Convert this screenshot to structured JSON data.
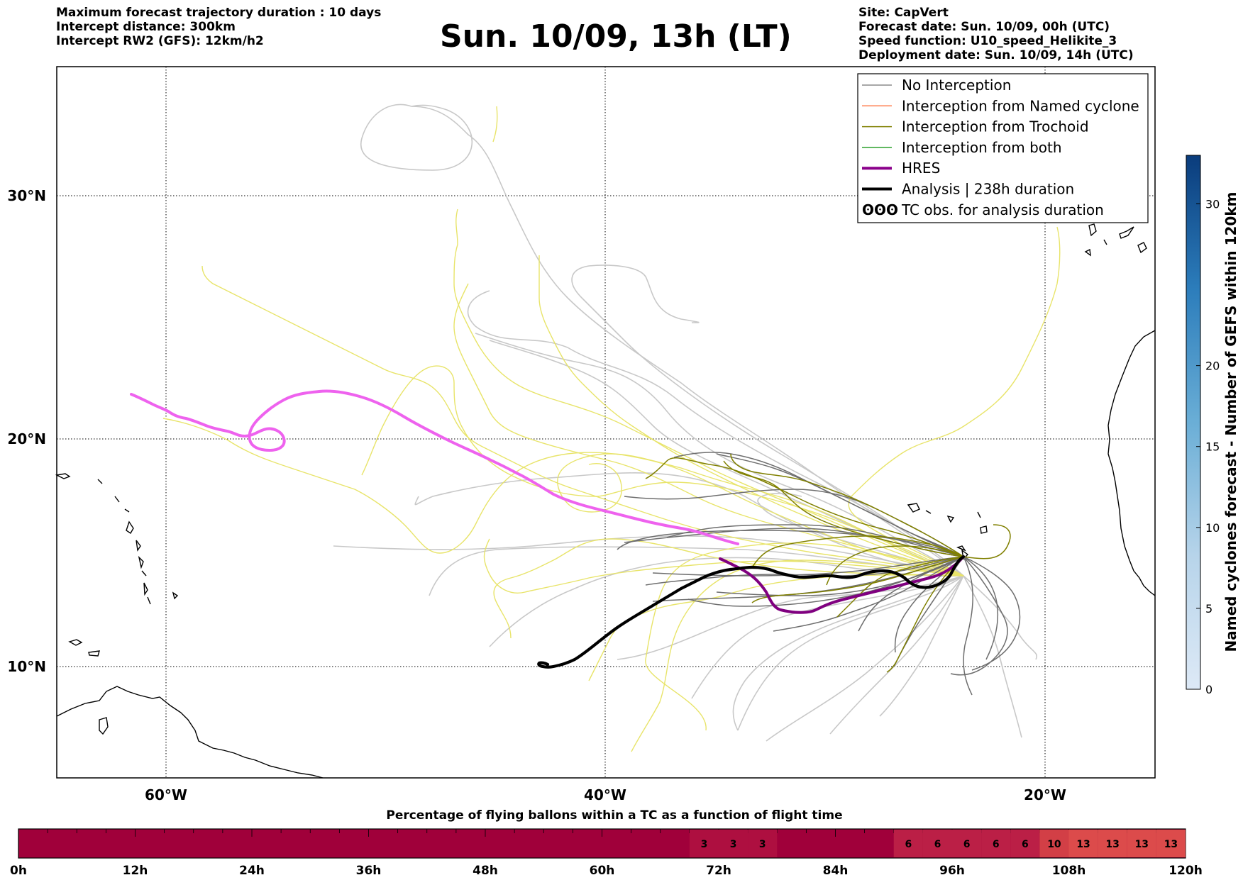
{
  "header": {
    "left_lines": [
      "Maximum forecast trajectory duration : 10 days",
      "Intercept distance: 300km",
      "Intercept RW2 (GFS):  12km/h2"
    ],
    "title": "Sun. 10/09, 13h (LT)",
    "right_lines": [
      "Site: CapVert",
      "Forecast date: Sun. 10/09, 00h (UTC)",
      "Speed function: U10_speed_Helikite_3",
      "Deployment date: Sun. 10/09, 14h (UTC)"
    ]
  },
  "map": {
    "lon_labels": [
      "60°W",
      "40°W",
      "20°W"
    ],
    "lat_labels": [
      "30°N",
      "20°N",
      "10°N"
    ],
    "legend": [
      {
        "label": "No Interception",
        "color": "#8c8c8c",
        "style": "thin"
      },
      {
        "label": "Interception from Named cyclone",
        "color": "#ff7f50",
        "style": "thin"
      },
      {
        "label": "Interception from Trochoid",
        "color": "#808000",
        "style": "thin"
      },
      {
        "label": "Interception from both",
        "color": "#2ca02c",
        "style": "thin"
      },
      {
        "label": "HRES",
        "color": "#8b008b",
        "style": "thick"
      },
      {
        "label": "Analysis | 238h duration",
        "color": "#000000",
        "style": "thick"
      },
      {
        "label": "TC obs. for analysis duration",
        "color": "#000000",
        "style": "tc"
      }
    ],
    "tc_symbol": "ʘʘʘ"
  },
  "colorbar": {
    "label": "Named cyclones forecast - Number of GEFS within 120km",
    "ticks": [
      "0",
      "5",
      "10",
      "15",
      "20",
      "30"
    ]
  },
  "timeline": {
    "title": "Percentage of flying ballons within a TC as a function of flight time",
    "tick_labels": [
      "0h",
      "12h",
      "24h",
      "36h",
      "48h",
      "60h",
      "72h",
      "84h",
      "96h",
      "108h",
      "120h"
    ],
    "cells": [
      {
        "label": "3"
      },
      {
        "label": "3"
      },
      {
        "label": "3"
      },
      {
        "label": "6"
      },
      {
        "label": "6"
      },
      {
        "label": "6"
      },
      {
        "label": "6"
      },
      {
        "label": "6"
      },
      {
        "label": "10"
      },
      {
        "label": "13"
      },
      {
        "label": "13"
      },
      {
        "label": "13"
      },
      {
        "label": "13"
      }
    ]
  }
}
